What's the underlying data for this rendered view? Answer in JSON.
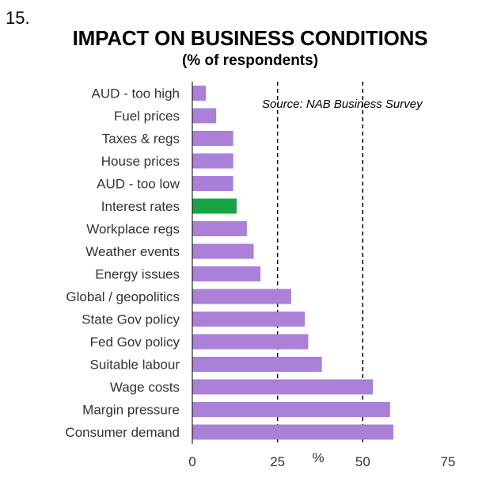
{
  "slide_number": "15.",
  "chart_data": {
    "type": "bar",
    "orientation": "horizontal",
    "title": "IMPACT ON BUSINESS CONDITIONS",
    "subtitle": "(% of respondents)",
    "source": "Source: NAB Business Survey",
    "xlabel": "%",
    "ylabel": "",
    "xlim": [
      0,
      75
    ],
    "xticks": [
      0,
      25,
      50,
      75
    ],
    "reference_lines": [
      25,
      50
    ],
    "categories": [
      "AUD - too high",
      "Fuel prices",
      "Taxes & regs",
      "House prices",
      "AUD - too low",
      "Interest rates",
      "Workplace regs",
      "Weather events",
      "Energy issues",
      "Global / geopolitics",
      "State Gov policy",
      "Fed Gov policy",
      "Suitable labour",
      "Wage costs",
      "Margin pressure",
      "Consumer demand"
    ],
    "values": [
      4,
      7,
      12,
      12,
      12,
      13,
      16,
      18,
      20,
      29,
      33,
      34,
      38,
      53,
      58,
      59
    ],
    "highlight": "Interest rates",
    "colors": {
      "bar": "#aa80d8",
      "highlight": "#17a444",
      "axis": "#000000",
      "label": "#333333"
    }
  }
}
